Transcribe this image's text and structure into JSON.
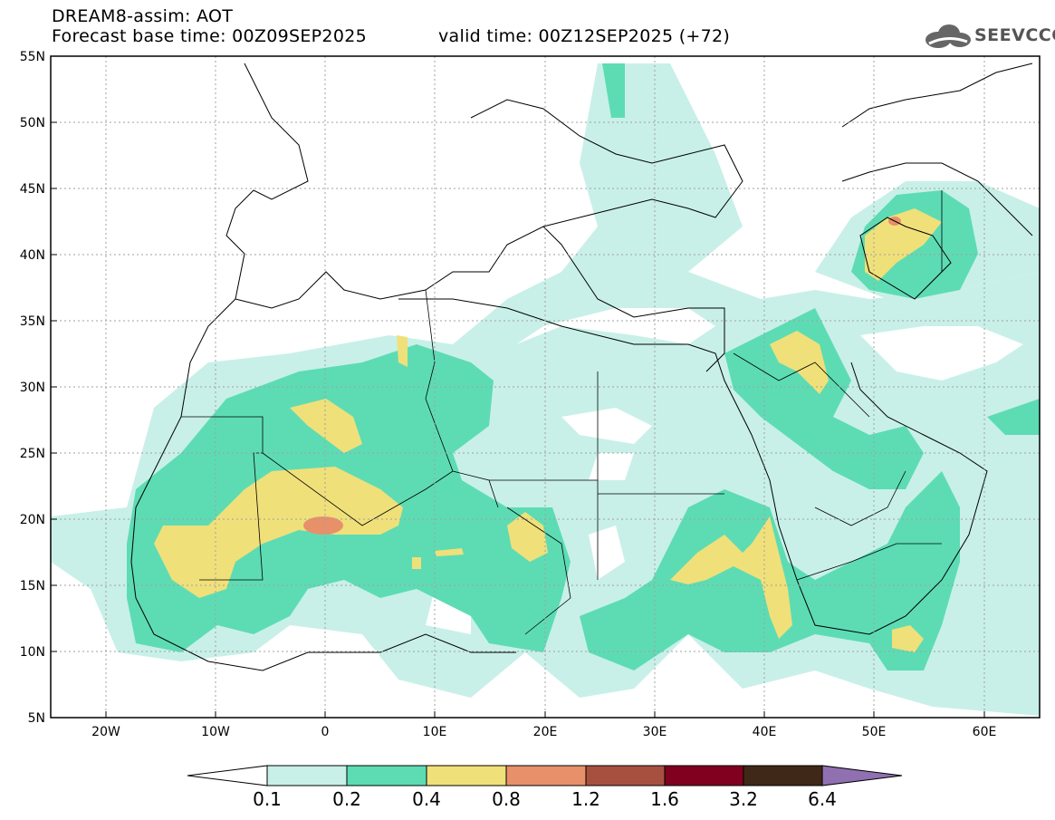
{
  "header": {
    "title_line1": "DREAM8-assim: AOT",
    "title_line2": "Forecast base time: 00Z09SEP2025",
    "valid_time": "valid time: 00Z12SEP2025 (+72)",
    "logo_text": "SEEVCCC"
  },
  "map": {
    "lon_range": [
      -25,
      65
    ],
    "lat_range": [
      5,
      55
    ],
    "lat_ticks": [
      "5N",
      "10N",
      "15N",
      "20N",
      "25N",
      "30N",
      "35N",
      "40N",
      "45N",
      "50N",
      "55N"
    ],
    "lon_ticks": [
      "20W",
      "10W",
      "0",
      "10E",
      "20E",
      "30E",
      "40E",
      "50E",
      "60E"
    ]
  },
  "colorbar": {
    "labels": [
      "0.1",
      "0.2",
      "0.4",
      "0.8",
      "1.2",
      "1.6",
      "3.2",
      "6.4"
    ],
    "colors": [
      "#ffffff",
      "#c8f0e8",
      "#5ddcb4",
      "#f0e07a",
      "#e8906a",
      "#a85040",
      "#800020",
      "#402818",
      "#9070b0"
    ]
  }
}
